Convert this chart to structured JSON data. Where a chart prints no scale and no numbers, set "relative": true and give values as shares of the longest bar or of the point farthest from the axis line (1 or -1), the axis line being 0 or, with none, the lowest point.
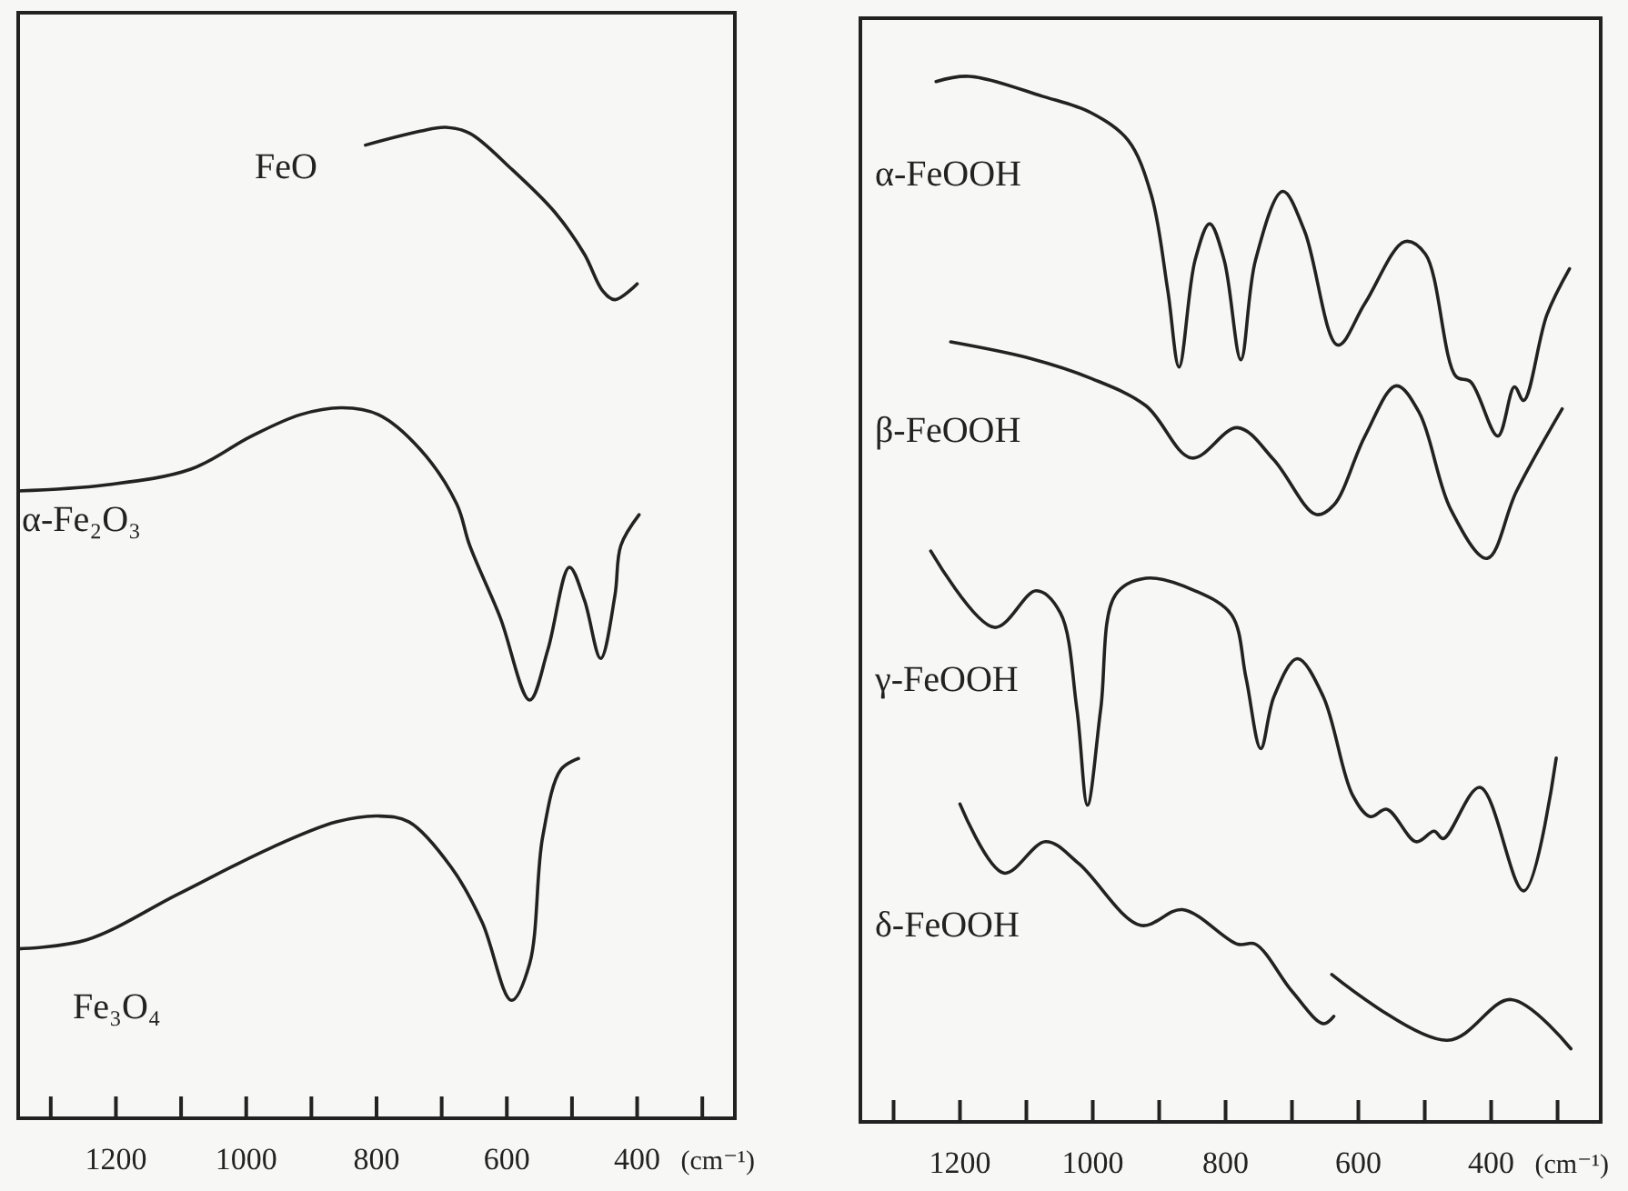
{
  "chart_data": [
    {
      "type": "line",
      "relative": true,
      "xlabel": "(cm⁻¹)",
      "xlim": [
        1350,
        250
      ],
      "xticks": [
        {
          "value": 1300,
          "label": null
        },
        1200,
        {
          "value": 1100,
          "label": null
        },
        1000,
        {
          "value": 900,
          "label": null
        },
        800,
        {
          "value": 700,
          "label": null
        },
        600,
        {
          "value": 500,
          "label": null
        },
        400,
        {
          "value": 300,
          "label": null
        }
      ],
      "series": [
        {
          "name": "FeO",
          "color": "#222222",
          "x": [
            817,
            733,
            694,
            657,
            593,
            526,
            481,
            453,
            434,
            400
          ],
          "values": [
            0.982,
            0.996,
            1.0,
            0.994,
            0.958,
            0.914,
            0.872,
            0.835,
            0.826,
            0.842
          ]
        },
        {
          "name": "α-Fe₂O₃",
          "color": "#222222",
          "x": [
            1350,
            1217,
            1085,
            993,
            917,
            853,
            797,
            733,
            677,
            657,
            610,
            565,
            537,
            504,
            481,
            456,
            434,
            425,
            397
          ],
          "values": [
            0.633,
            0.639,
            0.655,
            0.688,
            0.71,
            0.717,
            0.71,
            0.675,
            0.62,
            0.578,
            0.505,
            0.422,
            0.473,
            0.556,
            0.523,
            0.464,
            0.528,
            0.578,
            0.609
          ]
        },
        {
          "name": "Fe₃O₄",
          "color": "#222222",
          "x": [
            1350,
            1245,
            1105,
            965,
            862,
            797,
            750,
            685,
            638,
            593,
            565,
            545,
            517,
            490
          ],
          "values": [
            0.171,
            0.18,
            0.226,
            0.272,
            0.299,
            0.305,
            0.299,
            0.253,
            0.198,
            0.119,
            0.156,
            0.284,
            0.352,
            0.363
          ]
        }
      ]
    },
    {
      "type": "line",
      "relative": true,
      "xlabel": "(cm⁻¹)",
      "xlim": [
        1350,
        235
      ],
      "xticks": [
        {
          "value": 1300,
          "label": null
        },
        1200,
        {
          "value": 1100,
          "label": null
        },
        1000,
        {
          "value": 900,
          "label": null
        },
        800,
        {
          "value": 700,
          "label": null
        },
        600,
        {
          "value": 500,
          "label": null
        },
        400,
        {
          "value": 300,
          "label": null
        }
      ],
      "series": [
        {
          "name": "α-FeOOH",
          "color": "#222222",
          "x": [
            1236,
            1186,
            1076,
            1002,
            947,
            912,
            887,
            870,
            846,
            824,
            802,
            777,
            755,
            714,
            681,
            631,
            590,
            530,
            499,
            453,
            431,
            390,
            365,
            351,
            316,
            282
          ],
          "values": [
            0.995,
            1.0,
            0.981,
            0.965,
            0.939,
            0.887,
            0.795,
            0.722,
            0.824,
            0.859,
            0.824,
            0.729,
            0.824,
            0.89,
            0.852,
            0.743,
            0.783,
            0.842,
            0.83,
            0.713,
            0.708,
            0.656,
            0.703,
            0.69,
            0.772,
            0.816
          ]
        },
        {
          "name": "β-FeOOH",
          "color": "#222222",
          "x": [
            1214,
            1093,
            1002,
            920,
            851,
            782,
            727,
            664,
            637,
            590,
            543,
            508,
            461,
            406,
            362,
            293
          ],
          "values": [
            0.746,
            0.73,
            0.711,
            0.685,
            0.635,
            0.664,
            0.633,
            0.581,
            0.59,
            0.656,
            0.704,
            0.678,
            0.586,
            0.539,
            0.603,
            0.682
          ]
        },
        {
          "name": "γ-FeOOH",
          "color": "#222222",
          "x": [
            1244,
            1148,
            1085,
            1049,
            1024,
            1008,
            988,
            966,
            920,
            846,
            791,
            769,
            747,
            727,
            692,
            653,
            609,
            582,
            557,
            513,
            486,
            472,
            417,
            351,
            302
          ],
          "values": [
            0.546,
            0.473,
            0.508,
            0.487,
            0.395,
            0.303,
            0.395,
            0.504,
            0.52,
            0.508,
            0.485,
            0.424,
            0.357,
            0.407,
            0.443,
            0.407,
            0.313,
            0.292,
            0.299,
            0.268,
            0.278,
            0.271,
            0.32,
            0.221,
            0.348
          ]
        },
        {
          "name": "δ-FeOOH",
          "color": "#222222",
          "x": [
            1200,
            1134,
            1071,
            1021,
            928,
            865,
            782,
            755,
            700,
            653,
            637,
            639,
            640,
            466,
            370,
            280
          ],
          "values": [
            0.304,
            0.238,
            0.268,
            0.247,
            0.188,
            0.203,
            0.17,
            0.17,
            0.125,
            0.094,
            0.101,
            null,
            0.141,
            0.078,
            0.117,
            0.07
          ]
        }
      ]
    }
  ]
}
